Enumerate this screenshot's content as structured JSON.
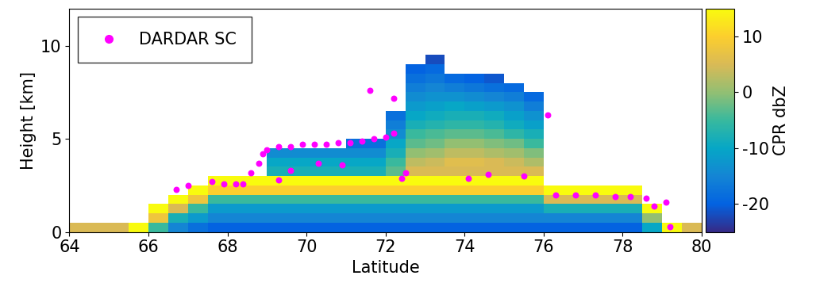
{
  "chart_data": {
    "type": "heatmap",
    "x_label": "Latitude",
    "y_label": "Height [km]",
    "xlim": [
      64,
      80
    ],
    "xticks": [
      64,
      66,
      68,
      70,
      72,
      74,
      76,
      78,
      80
    ],
    "ylim": [
      0,
      12
    ],
    "yticks": [
      0,
      5,
      10
    ],
    "x_bins": [
      64,
      64.5,
      65,
      65.5,
      66,
      66.5,
      67,
      67.5,
      68,
      68.5,
      69,
      69.5,
      70,
      70.5,
      71,
      71.5,
      72,
      72.5,
      73,
      73.5,
      74,
      74.5,
      75,
      75.5,
      76,
      76.5,
      77,
      77.5,
      78,
      78.5,
      79,
      79.5,
      80
    ],
    "y_bins": [
      0,
      0.5,
      1,
      1.5,
      2,
      2.5,
      3,
      3.5,
      4,
      4.5,
      5,
      5.5,
      6,
      6.5,
      7,
      7.5,
      8,
      8.5,
      9,
      9.5
    ],
    "cells": [
      [
        5,
        5,
        5,
        15,
        -5,
        -15,
        -18,
        -20,
        -20,
        -20,
        -20,
        -20,
        -20,
        -20,
        -20,
        -20,
        -20,
        -20,
        -20,
        -20,
        -20,
        -20,
        -20,
        -20,
        -20,
        -20,
        -20,
        -20,
        -20,
        -10,
        15,
        5
      ],
      [
        null,
        null,
        null,
        null,
        8,
        -8,
        -12,
        -15,
        -15,
        -15,
        -15,
        -15,
        -15,
        -15,
        -15,
        -15,
        -15,
        -15,
        -15,
        -15,
        -15,
        -15,
        -15,
        -15,
        -15,
        -15,
        -15,
        -15,
        -15,
        0,
        null,
        null
      ],
      [
        null,
        null,
        null,
        null,
        15,
        5,
        -5,
        -12,
        -12,
        -12,
        -12,
        -12,
        -12,
        -12,
        -12,
        -12,
        -12,
        -12,
        -12,
        -12,
        -12,
        -12,
        -12,
        -12,
        -8,
        -8,
        -8,
        -8,
        -8,
        15,
        null,
        null
      ],
      [
        null,
        null,
        null,
        null,
        null,
        15,
        8,
        -5,
        -5,
        -5,
        -5,
        -5,
        -5,
        -5,
        -5,
        -5,
        -5,
        -5,
        -5,
        -5,
        -5,
        -5,
        -5,
        -5,
        5,
        5,
        5,
        5,
        5,
        null,
        null,
        null
      ],
      [
        null,
        null,
        null,
        null,
        null,
        null,
        15,
        10,
        10,
        10,
        10,
        10,
        10,
        10,
        10,
        10,
        10,
        10,
        10,
        10,
        10,
        10,
        10,
        10,
        15,
        15,
        15,
        15,
        15,
        null,
        null,
        null
      ],
      [
        null,
        null,
        null,
        null,
        null,
        null,
        null,
        15,
        15,
        15,
        15,
        15,
        15,
        15,
        15,
        15,
        15,
        15,
        15,
        15,
        15,
        15,
        15,
        15,
        null,
        null,
        null,
        null,
        null,
        null,
        null,
        null
      ],
      [
        null,
        null,
        null,
        null,
        null,
        null,
        null,
        null,
        null,
        null,
        -8,
        -8,
        -8,
        -8,
        -8,
        -8,
        -3,
        5,
        5,
        5,
        5,
        5,
        5,
        5,
        null,
        null,
        null,
        null,
        null,
        null,
        null,
        null
      ],
      [
        null,
        null,
        null,
        null,
        null,
        null,
        null,
        null,
        null,
        null,
        -10,
        -10,
        -10,
        -10,
        -10,
        -10,
        -5,
        3,
        4,
        6,
        6,
        5,
        4,
        2,
        null,
        null,
        null,
        null,
        null,
        null,
        null,
        null
      ],
      [
        null,
        null,
        null,
        null,
        null,
        null,
        null,
        null,
        null,
        null,
        -14,
        -14,
        -14,
        -14,
        -14,
        -14,
        -8,
        0,
        1,
        3,
        3,
        2,
        1,
        -1,
        null,
        null,
        null,
        null,
        null,
        null,
        null,
        null
      ],
      [
        null,
        null,
        null,
        null,
        null,
        null,
        null,
        null,
        null,
        null,
        null,
        null,
        null,
        null,
        -18,
        -18,
        -10,
        -3,
        -2,
        0,
        0,
        -1,
        -2,
        -5,
        null,
        null,
        null,
        null,
        null,
        null,
        null,
        null
      ],
      [
        null,
        null,
        null,
        null,
        null,
        null,
        null,
        null,
        null,
        null,
        null,
        null,
        null,
        null,
        null,
        null,
        -14,
        -5,
        -4,
        -3,
        -3,
        -4,
        -6,
        -8,
        null,
        null,
        null,
        null,
        null,
        null,
        null,
        null
      ],
      [
        null,
        null,
        null,
        null,
        null,
        null,
        null,
        null,
        null,
        null,
        null,
        null,
        null,
        null,
        null,
        null,
        -16,
        -8,
        -7,
        -6,
        -6,
        -7,
        -9,
        -11,
        null,
        null,
        null,
        null,
        null,
        null,
        null,
        null
      ],
      [
        null,
        null,
        null,
        null,
        null,
        null,
        null,
        null,
        null,
        null,
        null,
        null,
        null,
        null,
        null,
        null,
        -18,
        -10,
        -9,
        -8,
        -8,
        -9,
        -11,
        -13,
        null,
        null,
        null,
        null,
        null,
        null,
        null,
        null
      ],
      [
        null,
        null,
        null,
        null,
        null,
        null,
        null,
        null,
        null,
        null,
        null,
        null,
        null,
        null,
        null,
        null,
        null,
        -12,
        -11,
        -10,
        -11,
        -12,
        -13,
        -16,
        null,
        null,
        null,
        null,
        null,
        null,
        null,
        null
      ],
      [
        null,
        null,
        null,
        null,
        null,
        null,
        null,
        null,
        null,
        null,
        null,
        null,
        null,
        null,
        null,
        null,
        null,
        -14,
        -13,
        -13,
        -14,
        -15,
        -16,
        -19,
        null,
        null,
        null,
        null,
        null,
        null,
        null,
        null
      ],
      [
        null,
        null,
        null,
        null,
        null,
        null,
        null,
        null,
        null,
        null,
        null,
        null,
        null,
        null,
        null,
        null,
        null,
        -16,
        -15,
        -16,
        -17,
        -18,
        -19,
        null,
        null,
        null,
        null,
        null,
        null,
        null,
        null,
        null
      ],
      [
        null,
        null,
        null,
        null,
        null,
        null,
        null,
        null,
        null,
        null,
        null,
        null,
        null,
        null,
        null,
        null,
        null,
        -18,
        -17,
        -19,
        -20,
        -21,
        null,
        null,
        null,
        null,
        null,
        null,
        null,
        null,
        null,
        null
      ],
      [
        null,
        null,
        null,
        null,
        null,
        null,
        null,
        null,
        null,
        null,
        null,
        null,
        null,
        null,
        null,
        null,
        null,
        -20,
        -19,
        null,
        null,
        null,
        null,
        null,
        null,
        null,
        null,
        null,
        null,
        null,
        null,
        null
      ],
      [
        null,
        null,
        null,
        null,
        null,
        null,
        null,
        null,
        null,
        null,
        null,
        null,
        null,
        null,
        null,
        null,
        null,
        null,
        -22,
        null,
        null,
        null,
        null,
        null,
        null,
        null,
        null,
        null,
        null,
        null,
        null,
        null
      ]
    ],
    "colorbar": {
      "label": "CPR dbZ",
      "range": [
        -25,
        15
      ],
      "ticks": [
        -20,
        -10,
        0,
        10
      ]
    },
    "legend": "upper left",
    "series": [
      {
        "name": "DARDAR SC",
        "type": "scatter",
        "color": "#ff00ff",
        "marker": "o",
        "x": [
          66.7,
          67.0,
          67.6,
          67.9,
          68.2,
          68.4,
          68.6,
          68.8,
          68.9,
          69.0,
          69.3,
          69.6,
          69.9,
          70.2,
          70.5,
          70.8,
          71.1,
          71.4,
          71.7,
          72.0,
          72.2,
          71.6,
          72.2,
          69.3,
          69.6,
          70.3,
          70.9,
          72.4,
          72.5,
          74.1,
          74.6,
          75.5,
          76.1,
          76.3,
          76.8,
          77.3,
          77.8,
          78.2,
          78.6,
          78.8,
          79.1,
          79.2
        ],
        "y": [
          2.3,
          2.5,
          2.7,
          2.6,
          2.6,
          2.6,
          3.2,
          3.7,
          4.2,
          4.4,
          4.6,
          4.6,
          4.7,
          4.7,
          4.7,
          4.8,
          4.8,
          4.9,
          5.0,
          5.1,
          5.3,
          7.6,
          7.2,
          2.8,
          3.3,
          3.7,
          3.6,
          2.9,
          3.2,
          2.9,
          3.1,
          3.0,
          6.3,
          2.0,
          2.0,
          2.0,
          1.9,
          1.9,
          1.8,
          1.4,
          1.6,
          0.3
        ]
      }
    ]
  }
}
